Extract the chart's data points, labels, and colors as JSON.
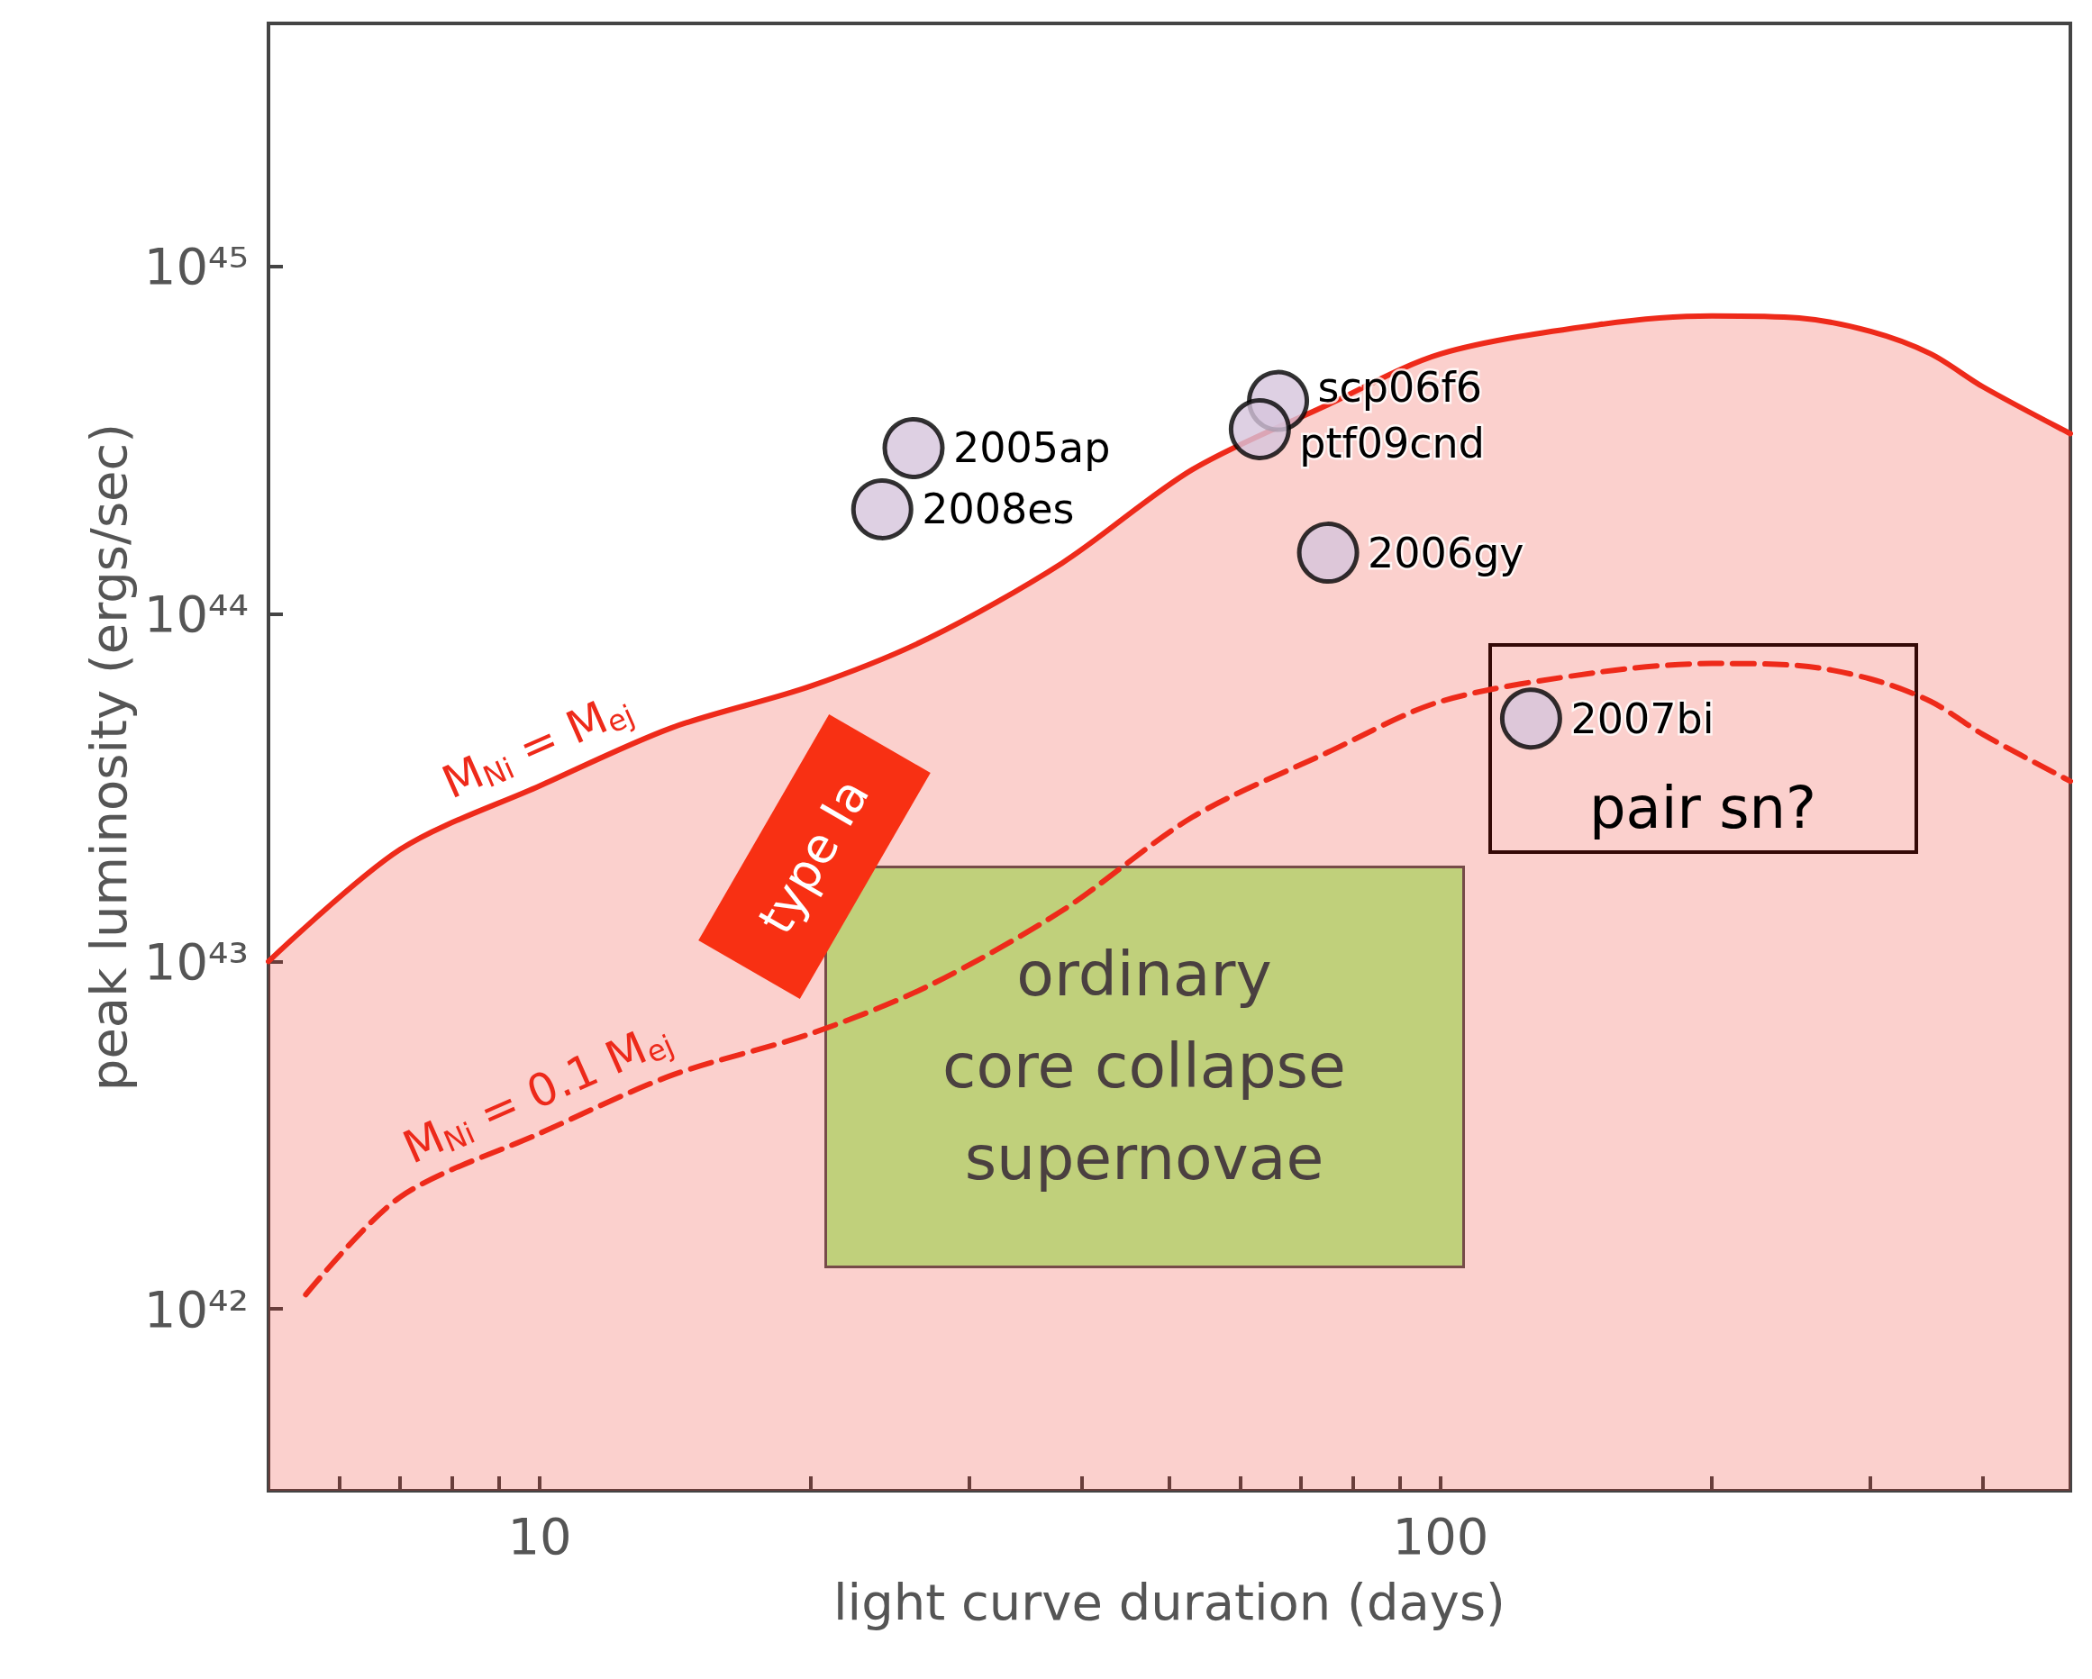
{
  "chart_data": {
    "type": "line",
    "xlabel": "light curve duration (days)",
    "ylabel": "peak luminosity (ergs/sec)",
    "log": "xy",
    "xlim": [
      5,
      500
    ],
    "ylim": [
      3e+41,
      5e+45
    ],
    "xticks": [
      {
        "value": 6,
        "label": null
      },
      {
        "value": 7,
        "label": null
      },
      {
        "value": 8,
        "label": null
      },
      {
        "value": 9,
        "label": null
      },
      10,
      {
        "value": 20,
        "label": null
      },
      {
        "value": 30,
        "label": null
      },
      {
        "value": 40,
        "label": null
      },
      {
        "value": 50,
        "label": null
      },
      {
        "value": 60,
        "label": null
      },
      {
        "value": 70,
        "label": null
      },
      {
        "value": 80,
        "label": null
      },
      {
        "value": 90,
        "label": null
      },
      100,
      {
        "value": 200,
        "label": null
      },
      {
        "value": 300,
        "label": null
      },
      {
        "value": 400,
        "label": null
      }
    ],
    "yticks": [
      {
        "value": 1e+42,
        "label": "10⁴²"
      },
      {
        "value": 1e+43,
        "label": "10⁴³"
      },
      {
        "value": 1e+44,
        "label": "10⁴⁴"
      },
      {
        "value": 1e+45,
        "label": "10⁴⁵"
      }
    ],
    "grid": false,
    "series": [
      {
        "name": "M$_{Ni}$ = M$_{ej}$",
        "type": "area",
        "color": "#ee2a1a",
        "line_style": "solid",
        "marker": "none",
        "x": [
          5,
          7,
          10,
          14,
          20,
          27,
          38,
          53,
          75,
          100,
          150,
          200,
          250,
          300,
          350,
          400,
          500
        ],
        "values": [
          1e+43,
          2.1e+43,
          3.2e+43,
          4.7e+43,
          6.2e+43,
          8.5e+43,
          1.4e+44,
          2.6e+44,
          4e+44,
          5.6e+44,
          6.8e+44,
          7.2e+44,
          7.1e+44,
          6.5e+44,
          5.6e+44,
          4.5e+44,
          3.3e+44
        ]
      },
      {
        "name": "M$_{Ni}$ = 0.1 M$_{ej}$",
        "color": "#ee2a1a",
        "line_style": "dashed",
        "marker": "none",
        "x": [
          5.5,
          7,
          10,
          14,
          20,
          27,
          38,
          53,
          75,
          100,
          150,
          200,
          250,
          300,
          350,
          400,
          500
        ],
        "values": [
          1.1e+42,
          2.1e+42,
          3.2e+42,
          4.7e+42,
          6.2e+42,
          8.5e+42,
          1.4e+43,
          2.6e+43,
          4e+43,
          5.6e+43,
          6.8e+43,
          7.2e+43,
          7.1e+43,
          6.5e+43,
          5.6e+43,
          4.5e+43,
          3.3e+43
        ]
      },
      {
        "type": "scatter",
        "color": "#d6c4dc",
        "marker": "circle",
        "x": [
          26,
          24,
          66,
          63,
          75,
          126
        ],
        "values": [
          3e+44,
          2e+44,
          4.1e+44,
          3.4e+44,
          1.5e+44,
          5e+43
        ]
      }
    ],
    "annotations": [
      "ordinary\ncore collapse\nsupernovae",
      "type Ia",
      "pair sn?",
      {
        "text": "2005ap",
        "x": 26,
        "y": 3e+44
      },
      {
        "text": "2008es",
        "x": 24,
        "y": 2e+44
      },
      {
        "text": "scp06f6",
        "x": 66,
        "y": 4.1e+44
      },
      {
        "text": "ptf09cnd",
        "x": 63,
        "y": 3.4e+44
      },
      {
        "text": "2006gy",
        "x": 75,
        "y": 1.5e+44
      },
      {
        "text": "2007bi",
        "x": 126,
        "y": 5e+43
      }
    ]
  }
}
